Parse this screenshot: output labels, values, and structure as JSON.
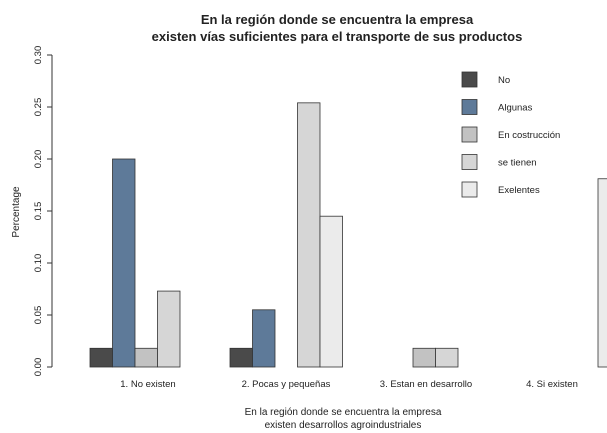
{
  "chart_data": {
    "type": "bar",
    "title_lines": [
      "En la región donde se encuentra la empresa",
      "existen vías suficientes para el transporte de sus productos"
    ],
    "xlabel_lines": [
      "En la región donde se encuentra la empresa",
      "existen desarrollos agroindustriales"
    ],
    "ylabel": "Percentage",
    "ylim": [
      0,
      0.3
    ],
    "yticks": [
      "0.00",
      "0.05",
      "0.10",
      "0.15",
      "0.20",
      "0.25",
      "0.30"
    ],
    "categories": [
      "1. No existen",
      "2. Pocas y pequeñas",
      "3. Estan en desarrollo",
      "4. Si existen"
    ],
    "series": [
      {
        "name": "No",
        "color": "#4a4a4a",
        "values": [
          0.018,
          0.018,
          0.0,
          0.0
        ]
      },
      {
        "name": "Algunas",
        "color": "#5e7a99",
        "values": [
          0.2,
          0.055,
          0.0,
          0.0
        ]
      },
      {
        "name": "En costrucción",
        "color": "#c2c2c2",
        "values": [
          0.018,
          0.0,
          0.018,
          0.0
        ]
      },
      {
        "name": "se tienen",
        "color": "#d6d6d6",
        "values": [
          0.073,
          0.254,
          0.018,
          0.0
        ]
      },
      {
        "name": "Exelentes",
        "color": "#ebebeb",
        "values": [
          0.0,
          0.145,
          0.0,
          0.181
        ]
      }
    ],
    "legend_position": "top-right",
    "grid": false
  }
}
